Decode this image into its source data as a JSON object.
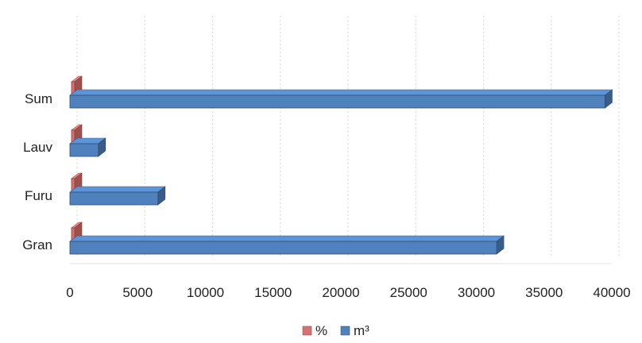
{
  "chart_data": {
    "type": "bar",
    "orientation": "horizontal",
    "style": "3d",
    "categories": [
      "Sum",
      "Lauv",
      "Furu",
      "Gran"
    ],
    "series": [
      {
        "name": "%",
        "values": [
          100,
          5,
          16,
          79
        ],
        "color": "#d9716e"
      },
      {
        "name": "m³",
        "values": [
          39500,
          2100,
          6500,
          31500
        ],
        "color": "#4f81bd"
      }
    ],
    "x_ticks": [
      0,
      5000,
      10000,
      15000,
      20000,
      25000,
      30000,
      35000,
      40000
    ],
    "xlim": [
      0,
      40000
    ],
    "grid": "vertical",
    "legend_position": "bottom",
    "title": "",
    "xlabel": "",
    "ylabel": ""
  }
}
